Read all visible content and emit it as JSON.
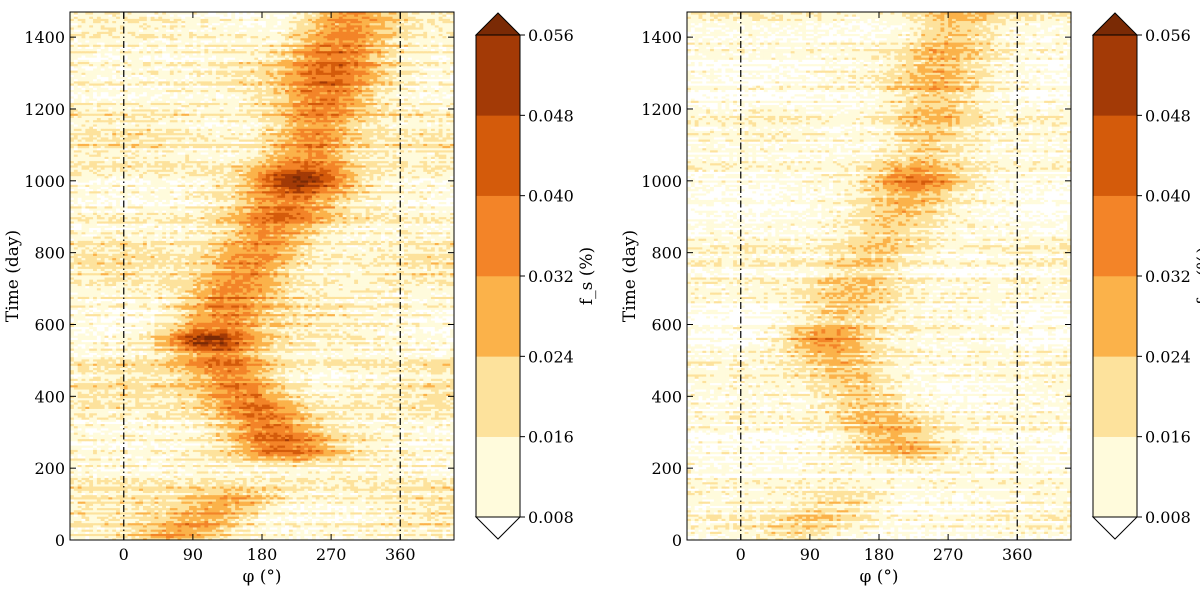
{
  "chart_data": [
    {
      "type": "heatmap",
      "title": "",
      "xlabel": "φ (°)",
      "ylabel": "Time (day)",
      "xlim": [
        -70,
        430
      ],
      "ylim": [
        0,
        1470
      ],
      "xticks": [
        0,
        90,
        180,
        270,
        360
      ],
      "yticks": [
        0,
        200,
        400,
        600,
        800,
        1000,
        1200,
        1400
      ],
      "reference_lines_x": [
        0,
        360
      ],
      "reference_line_style": "dash-dot",
      "colorbar": {
        "label": "f_s (%)",
        "levels": [
          0.008,
          0.016,
          0.024,
          0.032,
          0.04,
          0.048,
          0.056
        ],
        "tick_labels": [
          "0.008",
          "0.016",
          "0.024",
          "0.032",
          "0.040",
          "0.048",
          "0.056"
        ],
        "colors": [
          "#fffbdc",
          "#fde29c",
          "#fbb24a",
          "#f38428",
          "#d45b0b",
          "#a33a06"
        ],
        "under_color": "#ffffff",
        "over_color": "#7a2a05",
        "extend": "both"
      },
      "intensity_scale": 1.0,
      "ridges": [
        {
          "t_start": 0,
          "t_end": 120,
          "phi_start": 60,
          "phi_end": 150,
          "amplitude": 0.7
        },
        {
          "t_start": 250,
          "t_end": 560,
          "phi_start": 210,
          "phi_end": 110,
          "amplitude": 1.0
        },
        {
          "t_start": 560,
          "t_end": 1000,
          "phi_start": 110,
          "phi_end": 230,
          "amplitude": 0.9
        },
        {
          "t_start": 1000,
          "t_end": 1470,
          "phi_start": 230,
          "phi_end": 295,
          "amplitude": 1.0
        }
      ]
    },
    {
      "type": "heatmap",
      "title": "",
      "xlabel": "φ (°)",
      "ylabel": "Time (day)",
      "xlim": [
        -70,
        430
      ],
      "ylim": [
        0,
        1470
      ],
      "xticks": [
        0,
        90,
        180,
        270,
        360
      ],
      "yticks": [
        0,
        200,
        400,
        600,
        800,
        1000,
        1200,
        1400
      ],
      "reference_lines_x": [
        0,
        360
      ],
      "reference_line_style": "dash-dot",
      "colorbar": {
        "label": "f_s (%)",
        "levels": [
          0.008,
          0.016,
          0.024,
          0.032,
          0.04,
          0.048,
          0.056
        ],
        "tick_labels": [
          "0.008",
          "0.016",
          "0.024",
          "0.032",
          "0.040",
          "0.048",
          "0.056"
        ],
        "colors": [
          "#fffbdc",
          "#fde29c",
          "#fbb24a",
          "#f38428",
          "#d45b0b",
          "#a33a06"
        ],
        "under_color": "#ffffff",
        "over_color": "#7a2a05",
        "extend": "both"
      },
      "intensity_scale": 0.7,
      "ridges": [
        {
          "t_start": 0,
          "t_end": 120,
          "phi_start": 60,
          "phi_end": 150,
          "amplitude": 0.6
        },
        {
          "t_start": 250,
          "t_end": 560,
          "phi_start": 210,
          "phi_end": 110,
          "amplitude": 0.9
        },
        {
          "t_start": 560,
          "t_end": 1000,
          "phi_start": 110,
          "phi_end": 230,
          "amplitude": 0.8
        },
        {
          "t_start": 1000,
          "t_end": 1470,
          "phi_start": 230,
          "phi_end": 280,
          "amplitude": 0.9
        }
      ]
    }
  ]
}
